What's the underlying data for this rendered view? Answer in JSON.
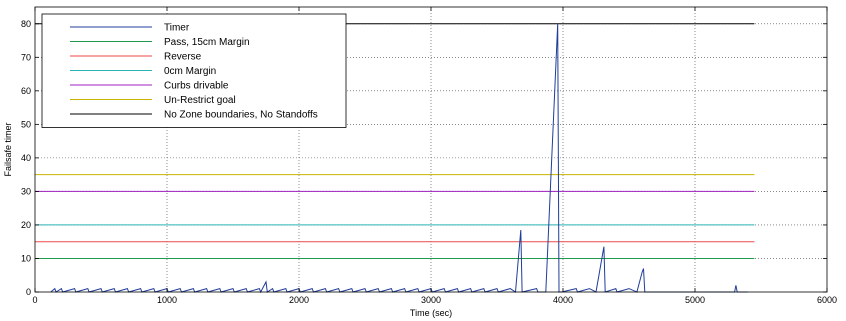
{
  "chart_data": {
    "type": "line",
    "title": "",
    "xlabel": "Time (sec)",
    "ylabel": "Failsafe timer",
    "xlim": [
      0,
      6000
    ],
    "ylim": [
      0,
      85
    ],
    "xticks": [
      0,
      1000,
      2000,
      3000,
      4000,
      5000,
      6000
    ],
    "yticks": [
      0,
      10,
      20,
      30,
      40,
      50,
      60,
      70,
      80
    ],
    "grid": true,
    "legend_position": "top-left",
    "series": [
      {
        "name": "Timer",
        "color": "#1f3d99",
        "x": [
          120,
          150,
          160,
          200,
          210,
          300,
          310,
          400,
          410,
          500,
          510,
          600,
          610,
          700,
          710,
          800,
          810,
          900,
          910,
          1000,
          1010,
          1100,
          1110,
          1200,
          1210,
          1300,
          1310,
          1400,
          1410,
          1500,
          1510,
          1600,
          1610,
          1700,
          1710,
          1750,
          1760,
          1800,
          1810,
          1900,
          1910,
          2000,
          2010,
          2100,
          2110,
          2200,
          2210,
          2300,
          2310,
          2400,
          2410,
          2500,
          2510,
          2600,
          2610,
          2700,
          2710,
          2800,
          2810,
          2900,
          2910,
          3000,
          3010,
          3100,
          3110,
          3200,
          3210,
          3300,
          3310,
          3400,
          3410,
          3500,
          3510,
          3600,
          3640,
          3680,
          3690,
          3800,
          3810,
          3870,
          3960,
          3970,
          3980,
          3990,
          4100,
          4110,
          4200,
          4250,
          4310,
          4320,
          4400,
          4410,
          4500,
          4560,
          4600,
          4610,
          4620,
          4650,
          4700,
          5000,
          5200,
          5300,
          5310,
          5320,
          5400
        ],
        "y": [
          0,
          1,
          0,
          1,
          0,
          1,
          0,
          1,
          0,
          1,
          0,
          1,
          0,
          1,
          0,
          1,
          0,
          1,
          0,
          1,
          0,
          1,
          0,
          1,
          0,
          1,
          0,
          1,
          0,
          1,
          0,
          1,
          0,
          1,
          0,
          3,
          0,
          1,
          0,
          1,
          0,
          1,
          0,
          1,
          0,
          1,
          0,
          1,
          0,
          1,
          0,
          1,
          0,
          1,
          0,
          1,
          0,
          1,
          0,
          1,
          0,
          1,
          0,
          1,
          0,
          1,
          0,
          1,
          0,
          1,
          0,
          1,
          0,
          1,
          0,
          18.5,
          0,
          1,
          0,
          0,
          80,
          0,
          0,
          0,
          1,
          0,
          1,
          0,
          13.5,
          0,
          1,
          0,
          1,
          0,
          6,
          7,
          0,
          0,
          0,
          0,
          0,
          0,
          2,
          0,
          0
        ]
      },
      {
        "name": "Pass, 15cm Margin",
        "color": "#1f9a4e",
        "x": [
          0,
          5450
        ],
        "y": [
          10,
          10
        ]
      },
      {
        "name": "Reverse",
        "color": "#f04a4a",
        "x": [
          0,
          5450
        ],
        "y": [
          15,
          15
        ]
      },
      {
        "name": "0cm Margin",
        "color": "#2ab3b3",
        "x": [
          0,
          5450
        ],
        "y": [
          20,
          20
        ]
      },
      {
        "name": "Curbs drivable",
        "color": "#a020c0",
        "x": [
          0,
          5450
        ],
        "y": [
          30,
          30
        ]
      },
      {
        "name": "Un-Restrict goal",
        "color": "#c8b400",
        "x": [
          0,
          5450
        ],
        "y": [
          35,
          35
        ]
      },
      {
        "name": "No Zone boundaries, No Standoffs",
        "color": "#000000",
        "x": [
          0,
          5450
        ],
        "y": [
          80,
          80
        ]
      }
    ]
  }
}
